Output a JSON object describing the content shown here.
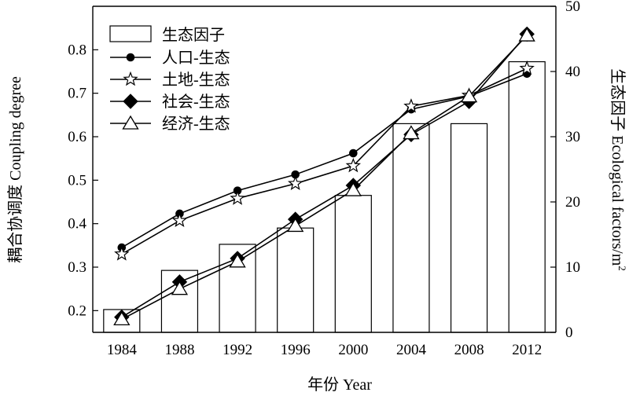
{
  "chart_data": {
    "type": "bar+line",
    "categories": [
      "1984",
      "1988",
      "1992",
      "1996",
      "2000",
      "2004",
      "2008",
      "2012"
    ],
    "xlabel": "年份 Year",
    "ylabel_left": "耦合协调度 Coupling degree",
    "ylabel_right_main": "生态因子 Ecological factors/m",
    "ylabel_right_sup": "2",
    "ylim_left": [
      0.15,
      0.9
    ],
    "ylim_right": [
      0,
      50
    ],
    "yticks_left": [
      0.2,
      0.3,
      0.4,
      0.5,
      0.6,
      0.7,
      0.8
    ],
    "yticks_right": [
      0,
      10,
      20,
      30,
      40,
      50
    ],
    "bars": {
      "name": "生态因子",
      "axis": "right",
      "values": [
        3.5,
        9.5,
        13.5,
        16,
        21,
        32,
        32,
        41.5
      ]
    },
    "series": [
      {
        "name": "人口-生态",
        "axis": "left",
        "marker": "filled-circle",
        "values": [
          0.345,
          0.423,
          0.476,
          0.513,
          0.562,
          0.663,
          0.693,
          0.745
        ]
      },
      {
        "name": "土地-生态",
        "axis": "left",
        "marker": "open-star",
        "values": [
          0.33,
          0.407,
          0.458,
          0.492,
          0.533,
          0.67,
          0.695,
          0.757
        ]
      },
      {
        "name": "社会-生态",
        "axis": "left",
        "marker": "filled-diamond",
        "values": [
          0.185,
          0.266,
          0.32,
          0.41,
          0.488,
          0.605,
          0.681,
          0.836
        ]
      },
      {
        "name": "经济-生态",
        "axis": "left",
        "marker": "open-triangle",
        "values": [
          0.18,
          0.25,
          0.313,
          0.395,
          0.477,
          0.608,
          0.693,
          0.833
        ]
      }
    ],
    "legend_position": "top-left",
    "grid": false
  }
}
